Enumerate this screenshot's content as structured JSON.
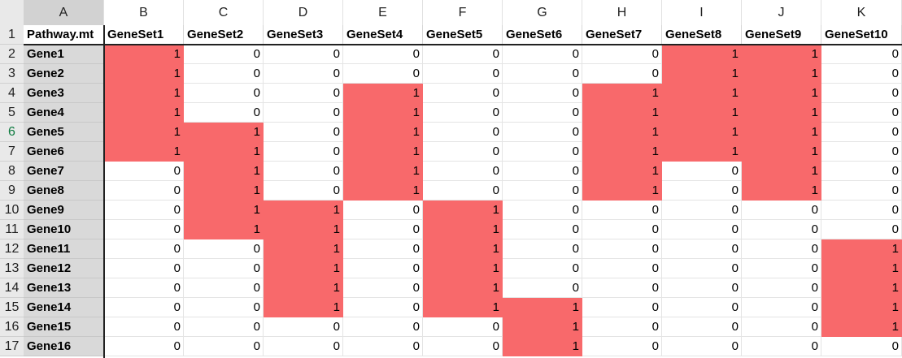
{
  "spreadsheet": {
    "column_letters": [
      "A",
      "B",
      "C",
      "D",
      "E",
      "F",
      "G",
      "H",
      "I",
      "J",
      "K"
    ],
    "row_numbers": [
      "1",
      "2",
      "3",
      "4",
      "5",
      "6",
      "7",
      "8",
      "9",
      "10",
      "11",
      "12",
      "13",
      "14",
      "15",
      "16",
      "17"
    ],
    "header": [
      "Pathway.mt",
      "GeneSet1",
      "GeneSet2",
      "GeneSet3",
      "GeneSet4",
      "GeneSet5",
      "GeneSet6",
      "GeneSet7",
      "GeneSet8",
      "GeneSet9",
      "GeneSet10"
    ],
    "rows": [
      {
        "gene": "Gene1",
        "values": [
          "1",
          "0",
          "0",
          "0",
          "0",
          "0",
          "0",
          "1",
          "1",
          "0"
        ]
      },
      {
        "gene": "Gene2",
        "values": [
          "1",
          "0",
          "0",
          "0",
          "0",
          "0",
          "0",
          "1",
          "1",
          "0"
        ]
      },
      {
        "gene": "Gene3",
        "values": [
          "1",
          "0",
          "0",
          "1",
          "0",
          "0",
          "1",
          "1",
          "1",
          "0"
        ]
      },
      {
        "gene": "Gene4",
        "values": [
          "1",
          "0",
          "0",
          "1",
          "0",
          "0",
          "1",
          "1",
          "1",
          "0"
        ]
      },
      {
        "gene": "Gene5",
        "values": [
          "1",
          "1",
          "0",
          "1",
          "0",
          "0",
          "1",
          "1",
          "1",
          "0"
        ]
      },
      {
        "gene": "Gene6",
        "values": [
          "1",
          "1",
          "0",
          "1",
          "0",
          "0",
          "1",
          "1",
          "1",
          "0"
        ]
      },
      {
        "gene": "Gene7",
        "values": [
          "0",
          "1",
          "0",
          "1",
          "0",
          "0",
          "1",
          "0",
          "1",
          "0"
        ]
      },
      {
        "gene": "Gene8",
        "values": [
          "0",
          "1",
          "0",
          "1",
          "0",
          "0",
          "1",
          "0",
          "1",
          "0"
        ]
      },
      {
        "gene": "Gene9",
        "values": [
          "0",
          "1",
          "1",
          "0",
          "1",
          "0",
          "0",
          "0",
          "0",
          "0"
        ]
      },
      {
        "gene": "Gene10",
        "values": [
          "0",
          "1",
          "1",
          "0",
          "1",
          "0",
          "0",
          "0",
          "0",
          "0"
        ]
      },
      {
        "gene": "Gene11",
        "values": [
          "0",
          "0",
          "1",
          "0",
          "1",
          "0",
          "0",
          "0",
          "0",
          "1"
        ]
      },
      {
        "gene": "Gene12",
        "values": [
          "0",
          "0",
          "1",
          "0",
          "1",
          "0",
          "0",
          "0",
          "0",
          "1"
        ]
      },
      {
        "gene": "Gene13",
        "values": [
          "0",
          "0",
          "1",
          "0",
          "1",
          "0",
          "0",
          "0",
          "0",
          "1"
        ]
      },
      {
        "gene": "Gene14",
        "values": [
          "0",
          "0",
          "1",
          "0",
          "1",
          "1",
          "0",
          "0",
          "0",
          "1"
        ]
      },
      {
        "gene": "Gene15",
        "values": [
          "0",
          "0",
          "0",
          "0",
          "0",
          "1",
          "0",
          "0",
          "0",
          "1"
        ]
      },
      {
        "gene": "Gene16",
        "values": [
          "0",
          "0",
          "0",
          "0",
          "0",
          "1",
          "0",
          "0",
          "0",
          "0"
        ]
      }
    ],
    "highlight_color": "#f8696b",
    "selected_row_number": "6"
  }
}
